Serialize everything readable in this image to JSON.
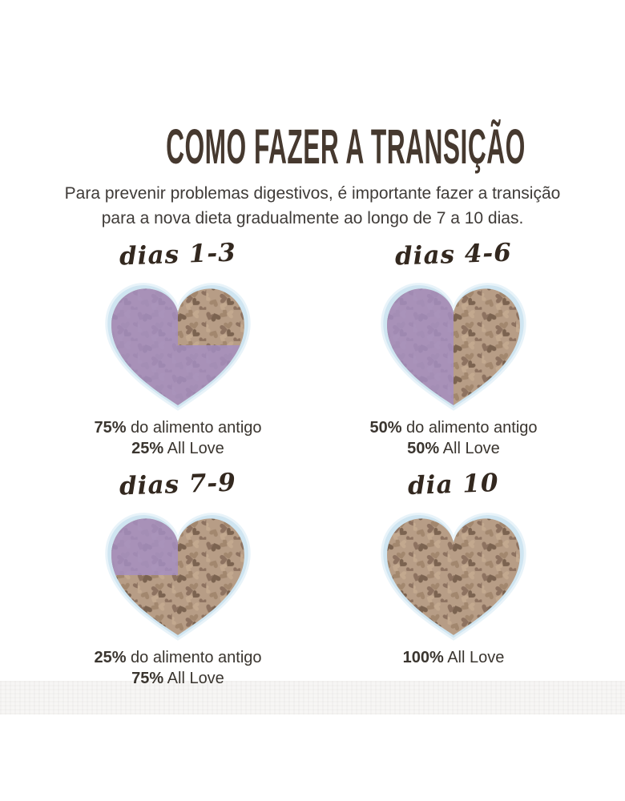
{
  "header": {
    "title": "COMO FAZER A TRANSIÇÃO",
    "subtitle_line1": "Para prevenir problemas digestivos, é importante fazer a transição",
    "subtitle_line2": "para a nova dieta gradualmente ao longo de 7 a 10 dias."
  },
  "colors": {
    "title_text": "#46392f",
    "body_text": "#3f3b38",
    "script_text": "#33281f",
    "caption_text": "#3a352f",
    "bowl_rim": "#cfe5f1",
    "kibble_base": "#b79d86",
    "kibble_shade1": "#8d7260",
    "kibble_shade2": "#a2876e",
    "kibble_shade3": "#c3a98f",
    "kibble_shade4": "#7b6350",
    "purple_overlay": "#a58fc2"
  },
  "steps": [
    {
      "label": "dias 1-3",
      "old_food_pct": 75,
      "all_love_pct": 25,
      "overlay": "three-quarters",
      "caption_lines": [
        {
          "bold": "75%",
          "rest": " do alimento antigo"
        },
        {
          "bold": "25%",
          "rest": " All Love"
        }
      ]
    },
    {
      "label": "dias 4-6",
      "old_food_pct": 50,
      "all_love_pct": 50,
      "overlay": "half",
      "caption_lines": [
        {
          "bold": "50%",
          "rest": " do alimento antigo"
        },
        {
          "bold": "50%",
          "rest": " All Love"
        }
      ]
    },
    {
      "label": "dias 7-9",
      "old_food_pct": 25,
      "all_love_pct": 75,
      "overlay": "quarter",
      "caption_lines": [
        {
          "bold": "25%",
          "rest": " do alimento antigo"
        },
        {
          "bold": "75%",
          "rest": " All Love"
        }
      ]
    },
    {
      "label": "dia 10",
      "old_food_pct": 0,
      "all_love_pct": 100,
      "overlay": "none",
      "caption_lines": [
        {
          "bold": "100%",
          "rest": " All Love"
        }
      ]
    }
  ],
  "chart_data": {
    "type": "pie",
    "title": "COMO FAZER A TRANSIÇÃO",
    "categories": [
      "dias 1-3",
      "dias 4-6",
      "dias 7-9",
      "dia 10"
    ],
    "series": [
      {
        "name": "do alimento antigo",
        "values": [
          75,
          50,
          25,
          0
        ]
      },
      {
        "name": "All Love",
        "values": [
          25,
          50,
          75,
          100
        ]
      }
    ],
    "unit": "%",
    "legend_position": "below-each-figure"
  }
}
